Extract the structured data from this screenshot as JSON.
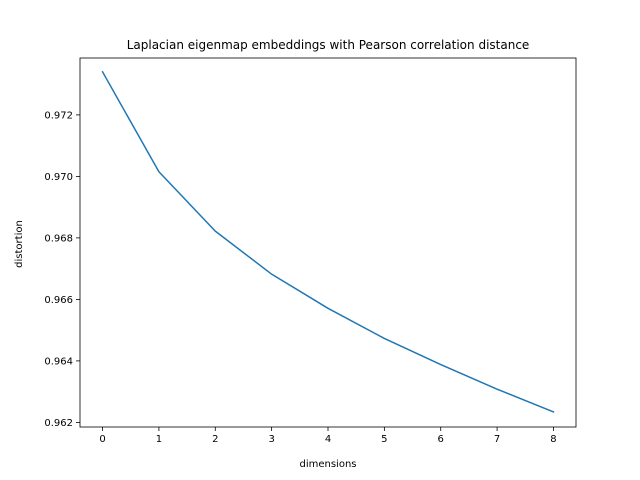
{
  "chart_data": {
    "type": "line",
    "title": "Laplacian eigenmap embeddings with Pearson correlation distance",
    "xlabel": "dimensions",
    "ylabel": "distortion",
    "xlim": [
      -0.4,
      8.4
    ],
    "ylim": [
      0.96185,
      0.97385
    ],
    "xticks": [
      "0",
      "1",
      "2",
      "3",
      "4",
      "5",
      "6",
      "7",
      "8"
    ],
    "yticks": [
      "0.962",
      "0.964",
      "0.966",
      "0.968",
      "0.970",
      "0.972"
    ],
    "grid": false,
    "series": [
      {
        "color": "#1f77b4",
        "x": [
          0,
          1,
          2,
          3,
          4,
          5,
          6,
          7,
          8
        ],
        "y": [
          0.9734,
          0.97015,
          0.96822,
          0.96682,
          0.96571,
          0.96473,
          0.96388,
          0.96308,
          0.96234
        ]
      }
    ]
  }
}
